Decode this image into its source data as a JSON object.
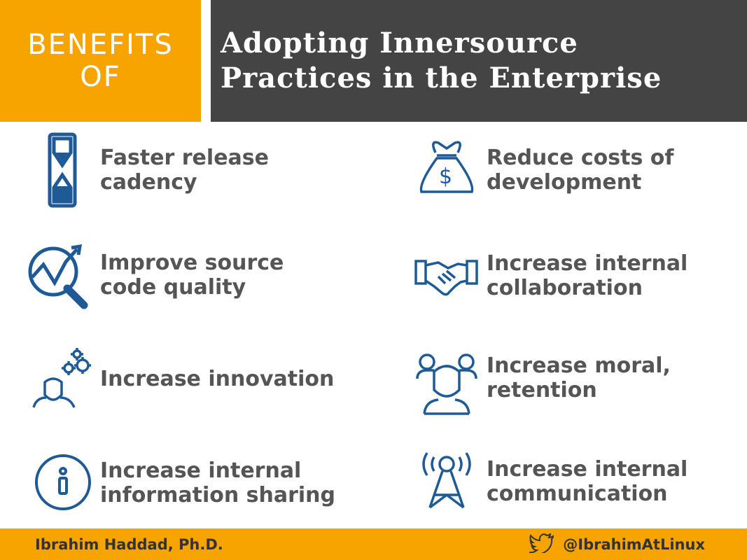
{
  "header": {
    "left_lines": [
      "BENEFITS",
      "OF"
    ],
    "title_lines": [
      "Adopting Innersource",
      "Practices in the Enterprise"
    ]
  },
  "benefits": [
    {
      "icon": "hourglass-icon",
      "lines": [
        "Faster release",
        "cadency"
      ]
    },
    {
      "icon": "money-bag-icon",
      "lines": [
        "Reduce costs of",
        "development"
      ]
    },
    {
      "icon": "chart-magnifier-icon",
      "lines": [
        "Improve source",
        "code quality"
      ]
    },
    {
      "icon": "handshake-icon",
      "lines": [
        "Increase internal",
        "collaboration"
      ]
    },
    {
      "icon": "person-gears-icon",
      "lines": [
        "Increase innovation"
      ]
    },
    {
      "icon": "team-icon",
      "lines": [
        "Increase moral,",
        "retention"
      ]
    },
    {
      "icon": "info-icon",
      "lines": [
        "Increase internal",
        "information sharing"
      ]
    },
    {
      "icon": "broadcast-tower-icon",
      "lines": [
        "Increase internal",
        "communication"
      ]
    }
  ],
  "footer": {
    "author": "Ibrahim Haddad, Ph.D.",
    "handle": "@IbrahimAtLinux",
    "handle_icon": "twitter-bird-icon"
  },
  "colors": {
    "accent": "#f7a400",
    "dark": "#444444",
    "icon_blue": "#1e5a96",
    "text_gray": "#555555"
  }
}
